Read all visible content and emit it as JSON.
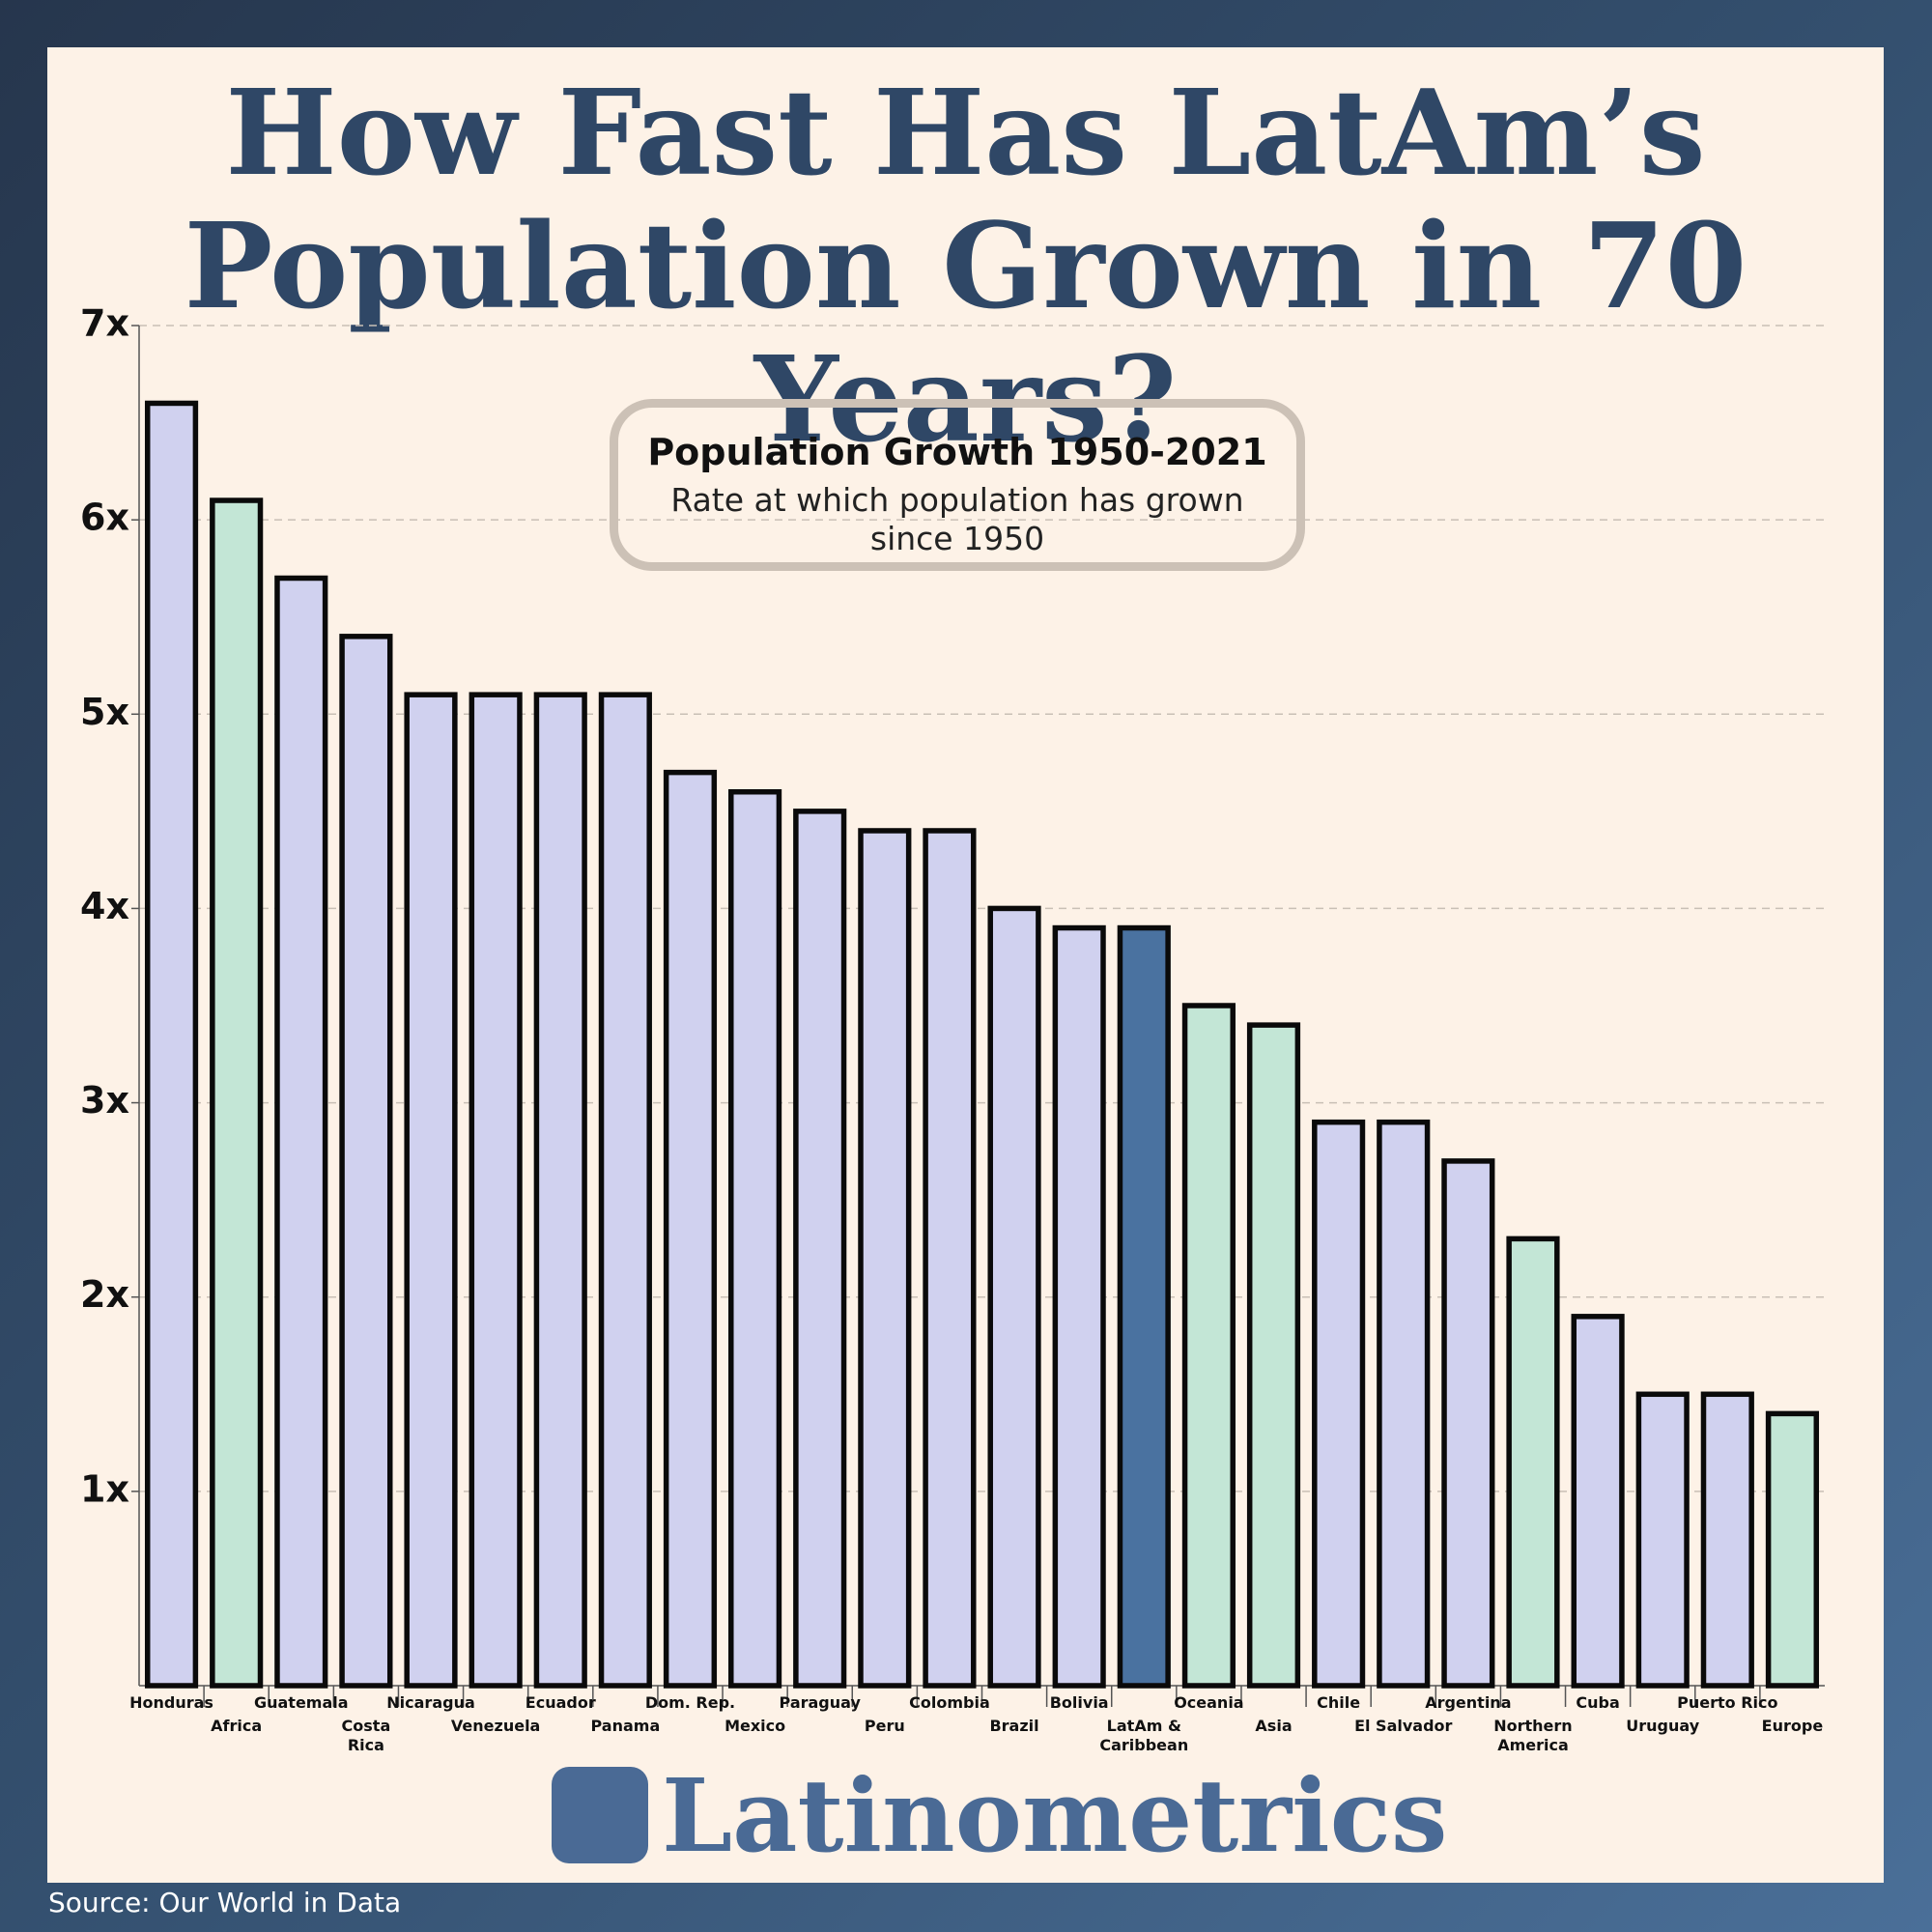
{
  "chart_data": {
    "type": "bar",
    "title": "How Fast Has LatAm’s\nPopulation Grown in 70 Years?",
    "box_title": "Population Growth 1950-2021",
    "box_subtitle": "Rate at which population has grown since 1950",
    "categories": [
      "Honduras",
      "Africa",
      "Guatemala",
      "Costa\nRica",
      "Nicaragua",
      "Venezuela",
      "Ecuador",
      "Panama",
      "Dom. Rep.",
      "Mexico",
      "Paraguay",
      "Peru",
      "Colombia",
      "Brazil",
      "Bolivia",
      "LatAm &\nCaribbean",
      "Oceania",
      "Asia",
      "Chile",
      "El Salvador",
      "Argentina",
      "Northern\nAmerica",
      "Cuba",
      "Uruguay",
      "Puerto Rico",
      "Europe"
    ],
    "values": [
      6.6,
      6.1,
      5.7,
      5.4,
      5.1,
      5.1,
      5.1,
      5.1,
      4.7,
      4.6,
      4.5,
      4.4,
      4.4,
      4.0,
      3.9,
      3.9,
      3.5,
      3.4,
      2.9,
      2.9,
      2.7,
      2.3,
      1.9,
      1.5,
      1.5,
      1.4
    ],
    "colors": [
      "#d0d1ef",
      "#c3e6d6",
      "#d0d1ef",
      "#d0d1ef",
      "#d0d1ef",
      "#d0d1ef",
      "#d0d1ef",
      "#d0d1ef",
      "#d0d1ef",
      "#d0d1ef",
      "#d0d1ef",
      "#d0d1ef",
      "#d0d1ef",
      "#d0d1ef",
      "#d0d1ef",
      "#4a72a0",
      "#c3e6d6",
      "#c3e6d6",
      "#d0d1ef",
      "#d0d1ef",
      "#d0d1ef",
      "#c3e6d6",
      "#d0d1ef",
      "#d0d1ef",
      "#d0d1ef",
      "#c3e6d6"
    ],
    "ylim": [
      0,
      7
    ],
    "yticks": [
      {
        "value": 1,
        "label": "1x"
      },
      {
        "value": 2,
        "label": "2x"
      },
      {
        "value": 3,
        "label": "3x"
      },
      {
        "value": 4,
        "label": "4x"
      },
      {
        "value": 5,
        "label": "5x"
      },
      {
        "value": 6,
        "label": "6x"
      },
      {
        "value": 7,
        "label": "7x"
      }
    ],
    "grid": true,
    "brand": "Latinometrics",
    "source": "Source: Our World in Data"
  }
}
